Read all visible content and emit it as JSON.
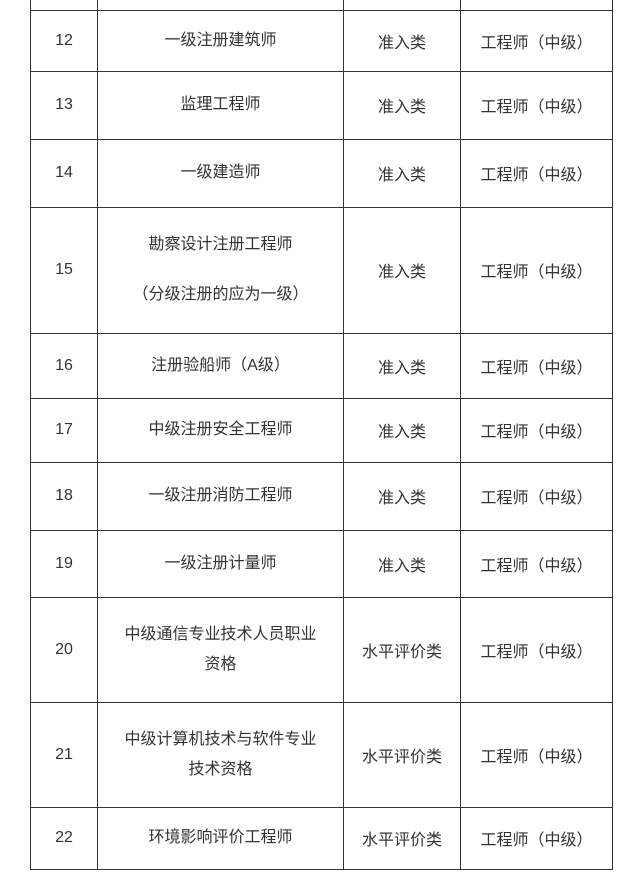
{
  "page": {
    "background": "#ffffff"
  },
  "table": {
    "border_color": "#333333",
    "text_color": "#333333",
    "rows": [
      {
        "no": "12",
        "name_lines": [
          "一级注册建筑师"
        ],
        "category": "准入类",
        "level": "工程师（中级）"
      },
      {
        "no": "13",
        "name_lines": [
          "监理工程师"
        ],
        "category": "准入类",
        "level": "工程师（中级）"
      },
      {
        "no": "14",
        "name_lines": [
          "一级建造师"
        ],
        "category": "准入类",
        "level": "工程师（中级）"
      },
      {
        "no": "15",
        "name_lines": [
          "勘察设计注册工程师"
        ],
        "note": "（分级注册的应为一级）",
        "category": "准入类",
        "level": "工程师（中级）"
      },
      {
        "no": "16",
        "name_lines": [
          "注册验船师（A级）"
        ],
        "category": "准入类",
        "level": "工程师（中级）"
      },
      {
        "no": "17",
        "name_lines": [
          "中级注册安全工程师"
        ],
        "category": "准入类",
        "level": "工程师（中级）"
      },
      {
        "no": "18",
        "name_lines": [
          "一级注册消防工程师"
        ],
        "category": "准入类",
        "level": "工程师（中级）"
      },
      {
        "no": "19",
        "name_lines": [
          "一级注册计量师"
        ],
        "category": "准入类",
        "level": "工程师（中级）"
      },
      {
        "no": "20",
        "name_lines": [
          "中级通信专业技术人员职业",
          "资格"
        ],
        "category": "水平评价类",
        "level": "工程师（中级）"
      },
      {
        "no": "21",
        "name_lines": [
          "中级计算机技术与软件专业",
          "技术资格"
        ],
        "category": "水平评价类",
        "level": "工程师（中级）"
      },
      {
        "no": "22",
        "name_lines": [
          "环境影响评价工程师"
        ],
        "category": "水平评价类",
        "level": "工程师（中级）"
      }
    ]
  }
}
